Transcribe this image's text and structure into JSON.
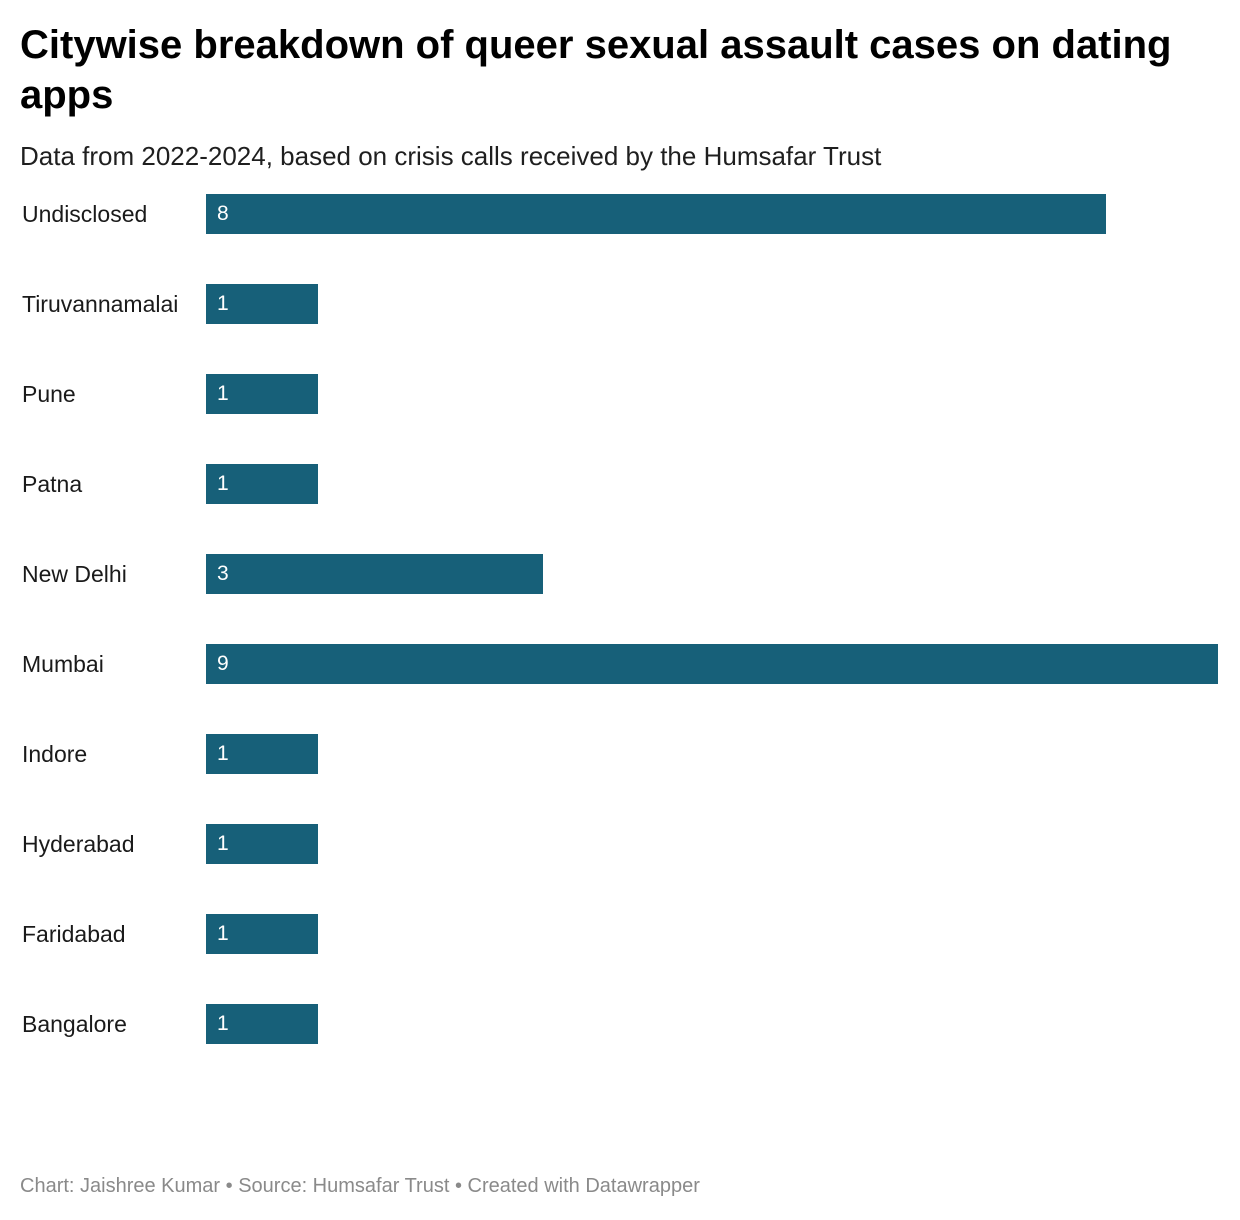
{
  "title": "Citywise breakdown of queer sexual assault cases on dating apps",
  "subtitle": "Data from 2022-2024, based on crisis calls received by the Humsafar Trust",
  "footer": {
    "chart_credit": "Chart: Jaishree Kumar",
    "separator": " • ",
    "source": "Source: Humsafar Trust",
    "created_with": "Created with Datawrapper"
  },
  "colors": {
    "bar": "#176079"
  },
  "chart_data": {
    "type": "bar",
    "orientation": "horizontal",
    "categories": [
      "Undisclosed",
      "Tiruvannamalai",
      "Pune",
      "Patna",
      "New Delhi",
      "Mumbai",
      "Indore",
      "Hyderabad",
      "Faridabad",
      "Bangalore"
    ],
    "values": [
      8,
      1,
      1,
      1,
      3,
      9,
      1,
      1,
      1,
      1
    ],
    "xlim": [
      0,
      9
    ],
    "grid": false,
    "legend": "none",
    "value_labels": "inside-start"
  }
}
